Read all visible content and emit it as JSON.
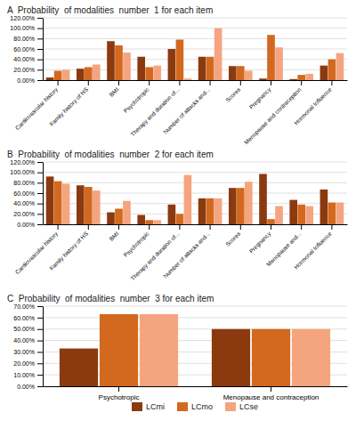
{
  "chart_data": [
    {
      "type": "bar",
      "title": "A  Probability  of modalities  number  1 for each item",
      "categories": [
        "Cardiovascular history",
        "Family history of HS",
        "BMI",
        "Psychotropic",
        "Therapy and duration of...",
        "Number of attacks and...",
        "Scores",
        "Pregnancy",
        "Menopause and contraception",
        "Hormonal Influence"
      ],
      "series": [
        {
          "name": "LCmi",
          "color": "#8B3A0F",
          "values": [
            5,
            22,
            75,
            45,
            60,
            45,
            27,
            3,
            2,
            28
          ]
        },
        {
          "name": "LCmo",
          "color": "#D2691E",
          "values": [
            18,
            25,
            67,
            25,
            78,
            45,
            27,
            87,
            10,
            40
          ]
        },
        {
          "name": "LCse",
          "color": "#F4A580",
          "values": [
            20,
            30,
            53,
            28,
            3,
            100,
            18,
            63,
            12,
            52
          ]
        }
      ],
      "ylim": [
        0,
        120
      ],
      "yticks": [
        {
          "value": 0,
          "label": "0.00%"
        },
        {
          "value": 20,
          "label": "20.00%"
        },
        {
          "value": 40,
          "label": "40.00%"
        },
        {
          "value": 60,
          "label": "60.00%"
        },
        {
          "value": 80,
          "label": "80.00%"
        },
        {
          "value": 100,
          "label": "100.00%"
        },
        {
          "value": 120,
          "label": "120.00%"
        }
      ],
      "grid": true
    },
    {
      "type": "bar",
      "title": "B  Probability  of modalities  number  2 for each item",
      "categories": [
        "Cardiovascular history",
        "Family history of HS",
        "BMI",
        "Psychotropic",
        "Therapy and duration of...",
        "Number of attacks and...",
        "Scores",
        "Pregnancy",
        "Menopause and...",
        "Hormonal Influence"
      ],
      "series": [
        {
          "name": "LCmi",
          "color": "#8B3A0F",
          "values": [
            92,
            75,
            23,
            18,
            38,
            50,
            70,
            97,
            47,
            67
          ]
        },
        {
          "name": "LCmo",
          "color": "#D2691E",
          "values": [
            83,
            72,
            30,
            8,
            20,
            50,
            70,
            10,
            38,
            42
          ]
        },
        {
          "name": "LCse",
          "color": "#F4A580",
          "values": [
            78,
            65,
            45,
            8,
            95,
            50,
            82,
            35,
            35,
            42
          ]
        }
      ],
      "ylim": [
        0,
        120
      ],
      "yticks": [
        {
          "value": 0,
          "label": "0.00%"
        },
        {
          "value": 20,
          "label": "20.00%"
        },
        {
          "value": 40,
          "label": "40.00%"
        },
        {
          "value": 60,
          "label": "60.00%"
        },
        {
          "value": 80,
          "label": "80.00%"
        },
        {
          "value": 100,
          "label": "100.00%"
        },
        {
          "value": 120,
          "label": "120.00%"
        }
      ],
      "grid": true
    },
    {
      "type": "bar",
      "title": "C  Probability  of modalities  number  3 for each item",
      "categories": [
        "Psychotropic",
        "Menopause and contraception"
      ],
      "series": [
        {
          "name": "LCmi",
          "color": "#8B3A0F",
          "values": [
            33,
            50
          ]
        },
        {
          "name": "LCmo",
          "color": "#D2691E",
          "values": [
            63,
            50
          ]
        },
        {
          "name": "LCse",
          "color": "#F4A580",
          "values": [
            63,
            50
          ]
        }
      ],
      "ylim": [
        0,
        70
      ],
      "yticks": [
        {
          "value": 0,
          "label": "0.00%"
        },
        {
          "value": 10,
          "label": "10.00%"
        },
        {
          "value": 20,
          "label": "20.00%"
        },
        {
          "value": 30,
          "label": "30.00%"
        },
        {
          "value": 40,
          "label": "40.00%"
        },
        {
          "value": 50,
          "label": "50.00%"
        },
        {
          "value": 60,
          "label": "60.00%"
        },
        {
          "value": 70,
          "label": "70.00%"
        }
      ],
      "grid": true,
      "legend": "bottom"
    }
  ]
}
